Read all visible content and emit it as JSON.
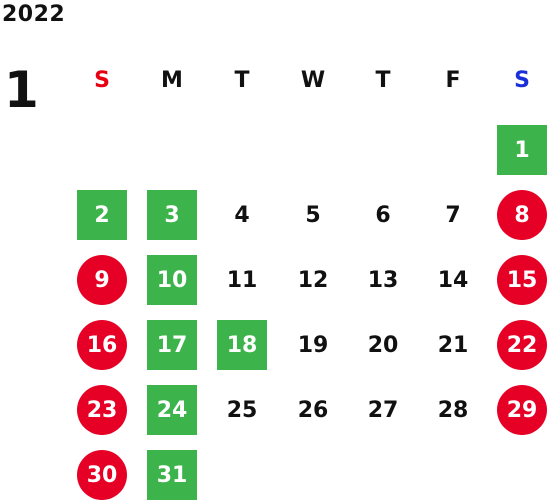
{
  "year": "2022",
  "month": "1",
  "weekdays": [
    {
      "label": "S",
      "color": "#e60012"
    },
    {
      "label": "M",
      "color": "#111111"
    },
    {
      "label": "T",
      "color": "#111111"
    },
    {
      "label": "W",
      "color": "#111111"
    },
    {
      "label": "T",
      "color": "#111111"
    },
    {
      "label": "F",
      "color": "#111111"
    },
    {
      "label": "S",
      "color": "#1a2fd8"
    }
  ],
  "colors": {
    "green": "#3cb44b",
    "red": "#e60026",
    "text": "#111111"
  },
  "days": [
    {
      "d": "1",
      "type": "green"
    },
    {
      "d": "2",
      "type": "green"
    },
    {
      "d": "3",
      "type": "green"
    },
    {
      "d": "4",
      "type": "plain"
    },
    {
      "d": "5",
      "type": "plain"
    },
    {
      "d": "6",
      "type": "plain"
    },
    {
      "d": "7",
      "type": "plain"
    },
    {
      "d": "8",
      "type": "red"
    },
    {
      "d": "9",
      "type": "red"
    },
    {
      "d": "10",
      "type": "green"
    },
    {
      "d": "11",
      "type": "plain"
    },
    {
      "d": "12",
      "type": "plain"
    },
    {
      "d": "13",
      "type": "plain"
    },
    {
      "d": "14",
      "type": "plain"
    },
    {
      "d": "15",
      "type": "red"
    },
    {
      "d": "16",
      "type": "red"
    },
    {
      "d": "17",
      "type": "green"
    },
    {
      "d": "18",
      "type": "green"
    },
    {
      "d": "19",
      "type": "plain"
    },
    {
      "d": "20",
      "type": "plain"
    },
    {
      "d": "21",
      "type": "plain"
    },
    {
      "d": "22",
      "type": "red"
    },
    {
      "d": "23",
      "type": "red"
    },
    {
      "d": "24",
      "type": "green"
    },
    {
      "d": "25",
      "type": "plain"
    },
    {
      "d": "26",
      "type": "plain"
    },
    {
      "d": "27",
      "type": "plain"
    },
    {
      "d": "28",
      "type": "plain"
    },
    {
      "d": "29",
      "type": "red"
    },
    {
      "d": "30",
      "type": "red"
    },
    {
      "d": "31",
      "type": "green"
    }
  ]
}
